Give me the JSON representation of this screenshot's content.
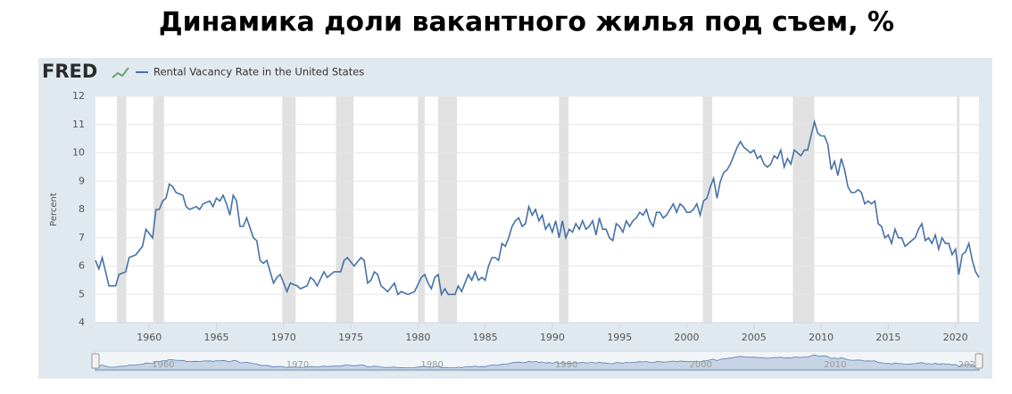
{
  "chart_data": {
    "type": "line",
    "title": "Динамика доли вакантного жилья под съем, %",
    "brand": "FRED",
    "ylabel": "Percent",
    "xlim": [
      1956,
      2021.75
    ],
    "ylim": [
      4,
      12
    ],
    "xticks": [
      1960,
      1965,
      1970,
      1975,
      1980,
      1985,
      1990,
      1995,
      2000,
      2005,
      2010,
      2015,
      2020
    ],
    "yticks": [
      4,
      5,
      6,
      7,
      8,
      9,
      10,
      11,
      12
    ],
    "navigator_ticks": [
      1960,
      1970,
      1980,
      1990,
      2000,
      2010,
      2020
    ],
    "grid": true,
    "recession_color": "#e1e1e1",
    "recessions": [
      [
        1957.6,
        1958.3
      ],
      [
        1960.3,
        1961.1
      ],
      [
        1969.9,
        1970.9
      ],
      [
        1973.9,
        1975.2
      ],
      [
        1980.0,
        1980.5
      ],
      [
        1981.5,
        1982.9
      ],
      [
        1990.5,
        1991.2
      ],
      [
        2001.2,
        2001.9
      ],
      [
        2007.9,
        2009.5
      ],
      [
        2020.1,
        2020.3
      ]
    ],
    "x": [
      1956,
      1956.25,
      1956.5,
      1957,
      1957.5,
      1957.75,
      1958.25,
      1958.5,
      1959,
      1959.5,
      1959.75,
      1960.25,
      1960.5,
      1960.75,
      1961,
      1961.25,
      1961.5,
      1961.75,
      1962,
      1962.5,
      1962.75,
      1963,
      1963.5,
      1963.75,
      1964,
      1964.5,
      1964.75,
      1965,
      1965.25,
      1965.5,
      1965.75,
      1966,
      1966.25,
      1966.5,
      1966.75,
      1967,
      1967.25,
      1967.75,
      1968,
      1968.25,
      1968.5,
      1968.75,
      1969.25,
      1969.5,
      1969.75,
      1970.25,
      1970.5,
      1971,
      1971.25,
      1971.75,
      1972,
      1972.25,
      1972.5,
      1973,
      1973.25,
      1973.75,
      1974.25,
      1974.5,
      1974.75,
      1975.25,
      1975.75,
      1976,
      1976.25,
      1976.5,
      1976.75,
      1977,
      1977.25,
      1977.75,
      1978.25,
      1978.5,
      1978.75,
      1979.25,
      1979.75,
      1980.25,
      1980.5,
      1980.75,
      1981,
      1981.25,
      1981.5,
      1981.75,
      1982,
      1982.25,
      1982.75,
      1983,
      1983.25,
      1983.75,
      1984,
      1984.25,
      1984.5,
      1984.75,
      1985,
      1985.25,
      1985.5,
      1985.75,
      1986,
      1986.25,
      1986.5,
      1986.75,
      1987,
      1987.25,
      1987.5,
      1987.75,
      1988,
      1988.25,
      1988.5,
      1988.75,
      1989,
      1989.25,
      1989.5,
      1989.75,
      1990,
      1990.25,
      1990.5,
      1990.75,
      1991,
      1991.25,
      1991.5,
      1991.75,
      1992,
      1992.25,
      1992.5,
      1992.75,
      1993,
      1993.25,
      1993.5,
      1993.75,
      1994,
      1994.25,
      1994.5,
      1994.75,
      1995,
      1995.25,
      1995.5,
      1995.75,
      1996,
      1996.25,
      1996.5,
      1996.75,
      1997,
      1997.25,
      1997.5,
      1997.75,
      1998,
      1998.25,
      1998.5,
      1998.75,
      1999,
      1999.25,
      1999.5,
      1999.75,
      2000,
      2000.25,
      2000.5,
      2000.75,
      2001,
      2001.25,
      2001.5,
      2001.75,
      2002,
      2002.25,
      2002.5,
      2002.75,
      2003,
      2003.25,
      2003.5,
      2003.75,
      2004,
      2004.25,
      2004.5,
      2004.75,
      2005,
      2005.25,
      2005.5,
      2005.75,
      2006,
      2006.25,
      2006.5,
      2006.75,
      2007,
      2007.25,
      2007.5,
      2007.75,
      2008,
      2008.25,
      2008.5,
      2008.75,
      2009,
      2009.25,
      2009.5,
      2009.75,
      2010,
      2010.25,
      2010.5,
      2010.75,
      2011,
      2011.25,
      2011.5,
      2011.75,
      2012,
      2012.25,
      2012.5,
      2012.75,
      2013,
      2013.25,
      2013.5,
      2013.75,
      2014,
      2014.25,
      2014.5,
      2014.75,
      2015,
      2015.25,
      2015.5,
      2015.75,
      2016,
      2016.25,
      2016.5,
      2016.75,
      2017,
      2017.25,
      2017.5,
      2017.75,
      2018,
      2018.25,
      2018.5,
      2018.75,
      2019,
      2019.25,
      2019.5,
      2019.75,
      2020,
      2020.25,
      2020.5,
      2020.75,
      2021,
      2021.25,
      2021.5,
      2021.75
    ],
    "series": [
      {
        "name": "Rental Vacancy Rate in the United States",
        "color": "#4572a7",
        "values": [
          6.2,
          5.9,
          6.3,
          5.3,
          5.3,
          5.7,
          5.8,
          6.3,
          6.4,
          6.7,
          7.3,
          7.0,
          8.0,
          8.0,
          8.3,
          8.4,
          8.9,
          8.8,
          8.6,
          8.5,
          8.1,
          8.0,
          8.1,
          8.0,
          8.2,
          8.3,
          8.1,
          8.4,
          8.3,
          8.5,
          8.2,
          7.8,
          8.5,
          8.3,
          7.4,
          7.4,
          7.7,
          7.0,
          6.9,
          6.2,
          6.1,
          6.2,
          5.4,
          5.6,
          5.7,
          5.1,
          5.4,
          5.3,
          5.2,
          5.3,
          5.6,
          5.5,
          5.3,
          5.8,
          5.6,
          5.8,
          5.8,
          6.2,
          6.3,
          6.0,
          6.3,
          6.2,
          5.4,
          5.5,
          5.8,
          5.7,
          5.3,
          5.1,
          5.4,
          5.0,
          5.1,
          5.0,
          5.1,
          5.6,
          5.7,
          5.4,
          5.2,
          5.6,
          5.7,
          5.0,
          5.2,
          5.0,
          5.0,
          5.3,
          5.1,
          5.7,
          5.5,
          5.8,
          5.5,
          5.6,
          5.5,
          6.0,
          6.3,
          6.3,
          6.2,
          6.8,
          6.7,
          7.0,
          7.4,
          7.6,
          7.7,
          7.4,
          7.5,
          8.1,
          7.8,
          8.0,
          7.6,
          7.8,
          7.3,
          7.5,
          7.2,
          7.6,
          7.0,
          7.6,
          7.0,
          7.3,
          7.2,
          7.5,
          7.3,
          7.6,
          7.3,
          7.4,
          7.6,
          7.1,
          7.7,
          7.3,
          7.3,
          7.0,
          6.9,
          7.5,
          7.4,
          7.2,
          7.6,
          7.4,
          7.6,
          7.7,
          7.9,
          7.8,
          8.0,
          7.6,
          7.4,
          7.9,
          7.9,
          7.7,
          7.8,
          8.0,
          8.2,
          7.9,
          8.2,
          8.1,
          7.9,
          7.9,
          8.0,
          8.2,
          7.8,
          8.3,
          8.4,
          8.8,
          9.1,
          8.4,
          9.0,
          9.3,
          9.4,
          9.6,
          9.9,
          10.2,
          10.4,
          10.2,
          10.1,
          10.0,
          10.1,
          9.8,
          9.9,
          9.6,
          9.5,
          9.6,
          9.9,
          9.8,
          10.1,
          9.5,
          9.8,
          9.6,
          10.1,
          10.0,
          9.9,
          10.1,
          10.1,
          10.6,
          11.1,
          10.7,
          10.6,
          10.6,
          10.3,
          9.4,
          9.7,
          9.2,
          9.8,
          9.4,
          8.8,
          8.6,
          8.6,
          8.7,
          8.6,
          8.2,
          8.3,
          8.2,
          8.3,
          7.5,
          7.4,
          7.0,
          7.1,
          6.8,
          7.3,
          7.0,
          7.0,
          6.7,
          6.8,
          6.9,
          7.0,
          7.3,
          7.5,
          6.9,
          7.0,
          6.8,
          7.1,
          6.6,
          7.0,
          6.8,
          6.8,
          6.4,
          6.6,
          5.7,
          6.4,
          6.5,
          6.8,
          6.2,
          5.8,
          5.6
        ]
      }
    ]
  }
}
